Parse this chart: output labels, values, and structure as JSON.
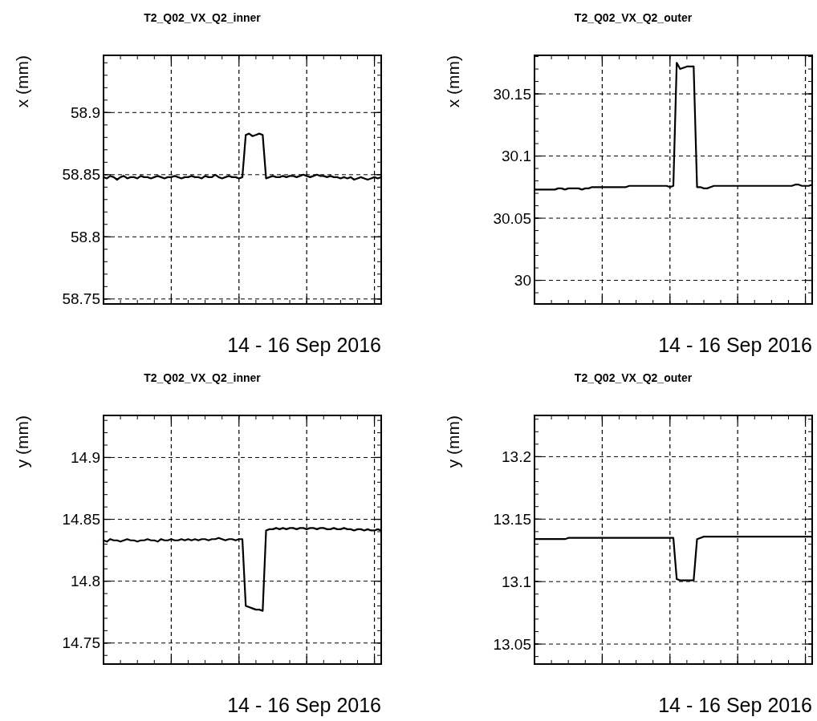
{
  "chart_data": [
    {
      "type": "line",
      "title": "T2_Q02_VX_Q2_inner",
      "xlabel": "14 - 16 Sep 2016",
      "ylabel": "x (mm)",
      "grid": true,
      "line_style": "solid",
      "ylim": [
        58.746,
        58.946
      ],
      "yticks": [
        58.75,
        58.8,
        58.85,
        58.9
      ],
      "categories": [
        null,
        null,
        null,
        null,
        null,
        null,
        null,
        null,
        null,
        null,
        null,
        null,
        null,
        null,
        null,
        null,
        null,
        null,
        null,
        null,
        null,
        null,
        null,
        null,
        null,
        null,
        null,
        null,
        null,
        null,
        null,
        null,
        null,
        null,
        null,
        null,
        null,
        null,
        null,
        null,
        null,
        null,
        null,
        null,
        null,
        null,
        null,
        null,
        null,
        null,
        null,
        null,
        null,
        null,
        null,
        null,
        null,
        null,
        null,
        null,
        null,
        null,
        null,
        null,
        null,
        null,
        null,
        null,
        null,
        null,
        null,
        null,
        null,
        null,
        null,
        null,
        null,
        null,
        null,
        null,
        null,
        null,
        null
      ],
      "series": [
        {
          "color": "#000000",
          "values": [
            58.848,
            58.847,
            58.849,
            58.848,
            58.846,
            58.848,
            58.849,
            58.847,
            58.848,
            58.848,
            58.847,
            58.849,
            58.848,
            58.848,
            58.847,
            58.848,
            58.849,
            58.848,
            58.847,
            58.848,
            58.848,
            58.849,
            58.848,
            58.847,
            58.848,
            58.848,
            58.849,
            58.848,
            58.848,
            58.847,
            58.849,
            58.848,
            58.848,
            58.85,
            58.848,
            58.847,
            58.848,
            58.849,
            58.848,
            58.848,
            58.847,
            58.848,
            58.882,
            58.883,
            58.881,
            58.882,
            58.883,
            58.882,
            58.847,
            58.848,
            58.849,
            58.848,
            58.848,
            58.849,
            58.848,
            58.849,
            58.849,
            58.848,
            58.849,
            58.85,
            58.849,
            58.848,
            58.849,
            58.85,
            58.849,
            58.849,
            58.848,
            58.849,
            58.848,
            58.848,
            58.847,
            58.848,
            58.847,
            58.848,
            58.846,
            58.847,
            58.848,
            58.847,
            58.846,
            58.847,
            58.848,
            58.847,
            58.848
          ]
        }
      ]
    },
    {
      "type": "line",
      "title": "T2_Q02_VX_Q2_outer",
      "xlabel": "14 - 16 Sep 2016",
      "ylabel": "x (mm)",
      "grid": true,
      "line_style": "solid",
      "ylim": [
        29.981,
        30.181
      ],
      "yticks": [
        30,
        30.05,
        30.1,
        30.15
      ],
      "categories": [
        null,
        null,
        null,
        null,
        null,
        null,
        null,
        null,
        null,
        null,
        null,
        null,
        null,
        null,
        null,
        null,
        null,
        null,
        null,
        null,
        null,
        null,
        null,
        null,
        null,
        null,
        null,
        null,
        null,
        null,
        null,
        null,
        null,
        null,
        null,
        null,
        null,
        null,
        null,
        null,
        null,
        null,
        null,
        null,
        null,
        null,
        null,
        null,
        null,
        null,
        null,
        null,
        null,
        null,
        null,
        null,
        null,
        null,
        null,
        null,
        null,
        null,
        null,
        null,
        null,
        null,
        null,
        null,
        null,
        null,
        null,
        null,
        null,
        null,
        null,
        null,
        null,
        null,
        null,
        null,
        null,
        null,
        null
      ],
      "series": [
        {
          "color": "#000000",
          "values": [
            30.073,
            30.073,
            30.073,
            30.073,
            30.073,
            30.073,
            30.073,
            30.074,
            30.074,
            30.073,
            30.074,
            30.074,
            30.074,
            30.074,
            30.073,
            30.074,
            30.074,
            30.075,
            30.075,
            30.075,
            30.075,
            30.075,
            30.075,
            30.075,
            30.075,
            30.075,
            30.075,
            30.075,
            30.076,
            30.076,
            30.076,
            30.076,
            30.076,
            30.076,
            30.076,
            30.076,
            30.076,
            30.076,
            30.076,
            30.076,
            30.075,
            30.076,
            30.175,
            30.17,
            30.171,
            30.172,
            30.172,
            30.172,
            30.075,
            30.075,
            30.074,
            30.074,
            30.075,
            30.076,
            30.076,
            30.076,
            30.076,
            30.076,
            30.076,
            30.076,
            30.076,
            30.076,
            30.076,
            30.076,
            30.076,
            30.076,
            30.076,
            30.076,
            30.076,
            30.076,
            30.076,
            30.076,
            30.076,
            30.076,
            30.076,
            30.076,
            30.076,
            30.077,
            30.077,
            30.076,
            30.076,
            30.076,
            30.077
          ]
        }
      ]
    },
    {
      "type": "line",
      "title": "T2_Q02_VX_Q2_inner",
      "xlabel": "14 - 16 Sep 2016",
      "ylabel": "y (mm)",
      "grid": true,
      "line_style": "solid",
      "ylim": [
        14.733,
        14.934
      ],
      "yticks": [
        14.75,
        14.8,
        14.85,
        14.9
      ],
      "categories": [
        null,
        null,
        null,
        null,
        null,
        null,
        null,
        null,
        null,
        null,
        null,
        null,
        null,
        null,
        null,
        null,
        null,
        null,
        null,
        null,
        null,
        null,
        null,
        null,
        null,
        null,
        null,
        null,
        null,
        null,
        null,
        null,
        null,
        null,
        null,
        null,
        null,
        null,
        null,
        null,
        null,
        null,
        null,
        null,
        null,
        null,
        null,
        null,
        null,
        null,
        null,
        null,
        null,
        null,
        null,
        null,
        null,
        null,
        null,
        null,
        null,
        null,
        null,
        null,
        null,
        null,
        null,
        null,
        null,
        null,
        null,
        null,
        null,
        null,
        null,
        null,
        null,
        null,
        null,
        null,
        null,
        null,
        null
      ],
      "series": [
        {
          "color": "#000000",
          "values": [
            14.833,
            14.832,
            14.834,
            14.833,
            14.833,
            14.832,
            14.833,
            14.834,
            14.833,
            14.833,
            14.832,
            14.833,
            14.833,
            14.834,
            14.833,
            14.833,
            14.832,
            14.834,
            14.833,
            14.833,
            14.834,
            14.833,
            14.833,
            14.834,
            14.833,
            14.834,
            14.833,
            14.834,
            14.833,
            14.834,
            14.834,
            14.833,
            14.834,
            14.834,
            14.835,
            14.834,
            14.833,
            14.834,
            14.834,
            14.833,
            14.834,
            14.834,
            14.78,
            14.779,
            14.778,
            14.777,
            14.777,
            14.776,
            14.841,
            14.842,
            14.842,
            14.843,
            14.842,
            14.843,
            14.842,
            14.843,
            14.843,
            14.842,
            14.843,
            14.843,
            14.842,
            14.843,
            14.843,
            14.842,
            14.843,
            14.843,
            14.842,
            14.842,
            14.843,
            14.842,
            14.842,
            14.843,
            14.842,
            14.842,
            14.841,
            14.842,
            14.842,
            14.841,
            14.842,
            14.841,
            14.841,
            14.842,
            14.841
          ]
        }
      ]
    },
    {
      "type": "line",
      "title": "T2_Q02_VX_Q2_outer",
      "xlabel": "14 - 16 Sep 2016",
      "ylabel": "y (mm)",
      "grid": true,
      "line_style": "solid",
      "ylim": [
        13.034,
        13.233
      ],
      "yticks": [
        13.05,
        13.1,
        13.15,
        13.2
      ],
      "categories": [
        null,
        null,
        null,
        null,
        null,
        null,
        null,
        null,
        null,
        null,
        null,
        null,
        null,
        null,
        null,
        null,
        null,
        null,
        null,
        null,
        null,
        null,
        null,
        null,
        null,
        null,
        null,
        null,
        null,
        null,
        null,
        null,
        null,
        null,
        null,
        null,
        null,
        null,
        null,
        null,
        null,
        null,
        null,
        null,
        null,
        null,
        null,
        null,
        null,
        null,
        null,
        null,
        null,
        null,
        null,
        null,
        null,
        null,
        null,
        null,
        null,
        null,
        null,
        null,
        null,
        null,
        null,
        null,
        null,
        null,
        null,
        null,
        null,
        null,
        null,
        null,
        null,
        null,
        null,
        null,
        null,
        null,
        null
      ],
      "series": [
        {
          "color": "#000000",
          "values": [
            13.134,
            13.134,
            13.134,
            13.134,
            13.134,
            13.134,
            13.134,
            13.134,
            13.134,
            13.134,
            13.135,
            13.135,
            13.135,
            13.135,
            13.135,
            13.135,
            13.135,
            13.135,
            13.135,
            13.135,
            13.135,
            13.135,
            13.135,
            13.135,
            13.135,
            13.135,
            13.135,
            13.135,
            13.135,
            13.135,
            13.135,
            13.135,
            13.135,
            13.135,
            13.135,
            13.135,
            13.135,
            13.135,
            13.135,
            13.135,
            13.135,
            13.135,
            13.102,
            13.101,
            13.101,
            13.101,
            13.101,
            13.101,
            13.134,
            13.135,
            13.136,
            13.136,
            13.136,
            13.136,
            13.136,
            13.136,
            13.136,
            13.136,
            13.136,
            13.136,
            13.136,
            13.136,
            13.136,
            13.136,
            13.136,
            13.136,
            13.136,
            13.136,
            13.136,
            13.136,
            13.136,
            13.136,
            13.136,
            13.136,
            13.136,
            13.136,
            13.136,
            13.136,
            13.136,
            13.136,
            13.136,
            13.136,
            13.136
          ]
        }
      ]
    }
  ]
}
